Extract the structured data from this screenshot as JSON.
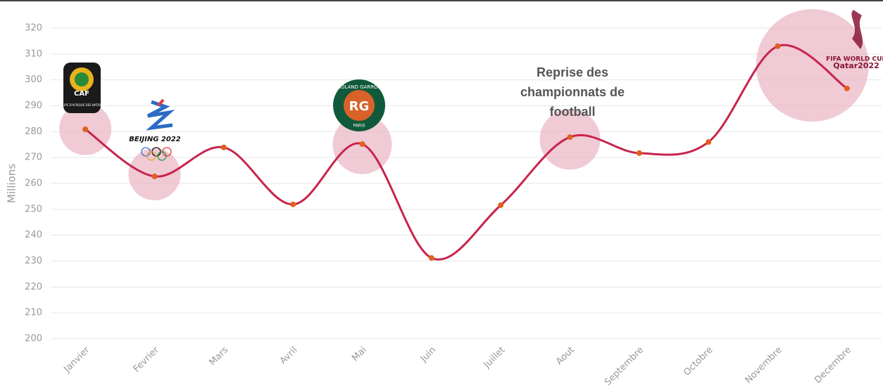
{
  "chart_data": {
    "type": "line",
    "y_axis_label": "Millions",
    "categories": [
      "Janvier",
      "Fevrier",
      "Mars",
      "Avril",
      "Mai",
      "Juin",
      "Juillet",
      "Aout",
      "Septembre",
      "Octobre",
      "Novembre",
      "Decembre"
    ],
    "series": [
      {
        "color": "#c8244c",
        "point_color": "#e0601f",
        "values": [
          280.9,
          262.7,
          273.9,
          251.9,
          275.2,
          231.2,
          251.6,
          277.9,
          271.7,
          276.0,
          313.0,
          296.7
        ]
      }
    ],
    "bubbles": {
      "color": "#eab3c2",
      "x": [
        0,
        1,
        4,
        7,
        10.5
      ],
      "values": [
        281,
        263.5,
        275,
        277,
        305.6
      ],
      "sizes": [
        37,
        37,
        42,
        43,
        80
      ]
    },
    "ylim": [
      200,
      320
    ],
    "yticks": [
      200,
      210,
      220,
      230,
      240,
      250,
      260,
      270,
      280,
      290,
      300,
      310,
      320
    ],
    "grid": true,
    "annotation": [
      "Reprise des",
      "championnats de",
      "football"
    ],
    "logos": {
      "caf": [
        "CAF",
        "COUPE D'AFRIQUE DES NATIONS"
      ],
      "beijing": "BEIJING 2022",
      "roland": [
        "ROLAND GARROS",
        "PARIS"
      ],
      "fifa": [
        "FIFA WORLD CUP",
        "Qatar2022"
      ]
    }
  }
}
